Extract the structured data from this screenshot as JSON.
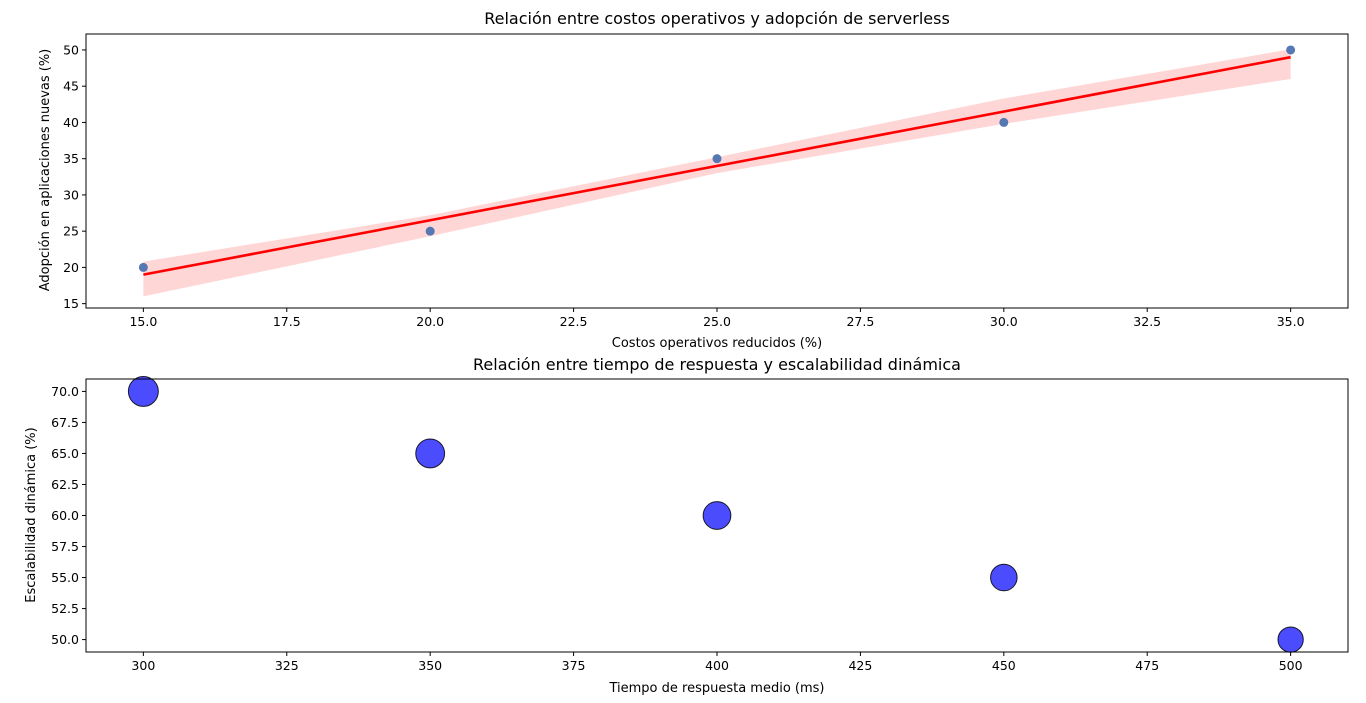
{
  "colors": {
    "scatter_points": "#4c72b0",
    "regression_line": "#ff0000",
    "confidence_band": "#ffcccc",
    "bubbles": "#0000ff",
    "bubble_edge": "#000000"
  },
  "chart_data": [
    {
      "type": "scatter",
      "title": "Relación entre costos operativos y adopción de serverless",
      "xlabel": "Costos operativos reducidos (%)",
      "ylabel": "Adopción en aplicaciones nuevas (%)",
      "xlim": [
        14,
        36
      ],
      "ylim": [
        14.4,
        52.2
      ],
      "x_ticks": [
        "15.0",
        "17.5",
        "20.0",
        "22.5",
        "25.0",
        "27.5",
        "30.0",
        "32.5",
        "35.0"
      ],
      "x_tick_values": [
        15,
        17.5,
        20,
        22.5,
        25,
        27.5,
        30,
        32.5,
        35
      ],
      "y_ticks": [
        "15",
        "20",
        "25",
        "30",
        "35",
        "40",
        "45",
        "50"
      ],
      "y_tick_values": [
        15,
        20,
        25,
        30,
        35,
        40,
        45,
        50
      ],
      "grid": false,
      "points": [
        {
          "x": 15,
          "y": 20
        },
        {
          "x": 20,
          "y": 25
        },
        {
          "x": 25,
          "y": 35
        },
        {
          "x": 30,
          "y": 40
        },
        {
          "x": 35,
          "y": 50
        }
      ],
      "regression_line": {
        "x": [
          15,
          35
        ],
        "y": [
          19,
          49
        ]
      },
      "confidence_band": {
        "x": [
          15,
          20,
          25,
          30,
          35
        ],
        "lower": [
          16,
          24.3,
          33,
          39.8,
          46
        ],
        "upper": [
          20.8,
          27.2,
          35.2,
          43.3,
          50.1
        ]
      }
    },
    {
      "type": "scatter",
      "title": "Relación entre tiempo de respuesta y escalabilidad dinámica",
      "xlabel": "Tiempo de respuesta medio (ms)",
      "ylabel": "Escalabilidad dinámica (%)",
      "xlim": [
        290,
        510
      ],
      "ylim": [
        49,
        71
      ],
      "x_ticks": [
        "300",
        "325",
        "350",
        "375",
        "400",
        "425",
        "450",
        "475",
        "500"
      ],
      "x_tick_values": [
        300,
        325,
        350,
        375,
        400,
        425,
        450,
        475,
        500
      ],
      "y_ticks": [
        "50.0",
        "52.5",
        "55.0",
        "57.5",
        "60.0",
        "62.5",
        "65.0",
        "67.5",
        "70.0"
      ],
      "y_tick_values": [
        50,
        52.5,
        55,
        57.5,
        60,
        62.5,
        65,
        67.5,
        70
      ],
      "grid": false,
      "points": [
        {
          "x": 300,
          "y": 70,
          "size": 70
        },
        {
          "x": 350,
          "y": 65,
          "size": 65
        },
        {
          "x": 400,
          "y": 60,
          "size": 60
        },
        {
          "x": 450,
          "y": 55,
          "size": 55
        },
        {
          "x": 500,
          "y": 50,
          "size": 50
        }
      ]
    }
  ]
}
